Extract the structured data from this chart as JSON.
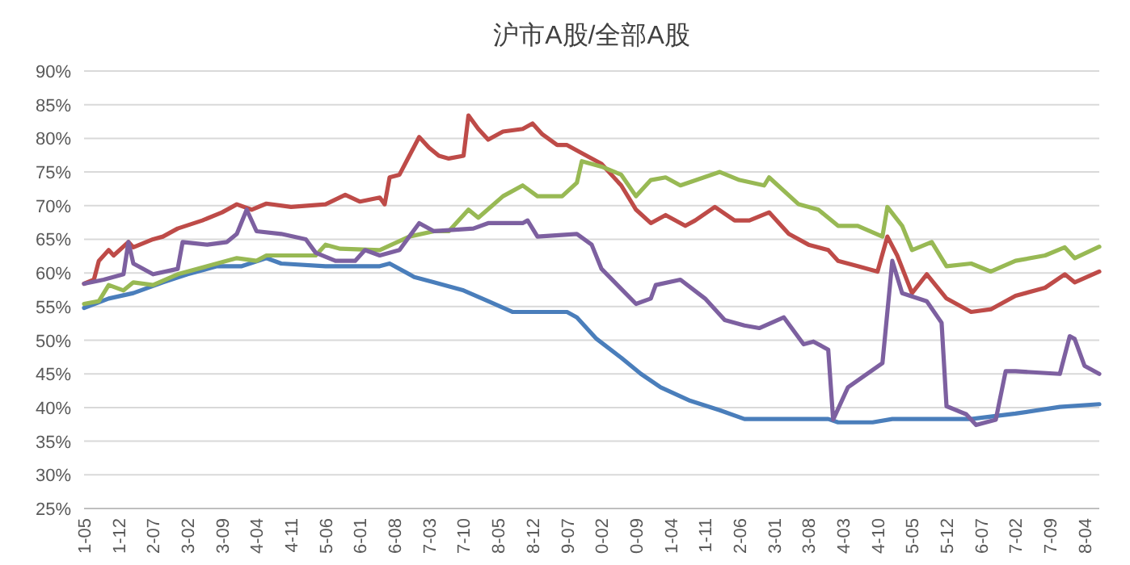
{
  "chart_data": {
    "type": "line",
    "title": "沪市A股/全部A股",
    "xlim": [
      "2001-05",
      "2018-07"
    ],
    "xticks": [
      {
        "value": "2001-05",
        "label": "1-05"
      },
      {
        "value": "2001-12",
        "label": "1-12"
      },
      {
        "value": "2002-07",
        "label": "2-07"
      },
      {
        "value": "2003-02",
        "label": "3-02"
      },
      {
        "value": "2003-09",
        "label": "3-09"
      },
      {
        "value": "2004-04",
        "label": "4-04"
      },
      {
        "value": "2004-11",
        "label": "4-11"
      },
      {
        "value": "2005-06",
        "label": "5-06"
      },
      {
        "value": "2006-01",
        "label": "6-01"
      },
      {
        "value": "2006-08",
        "label": "6-08"
      },
      {
        "value": "2007-03",
        "label": "7-03"
      },
      {
        "value": "2007-10",
        "label": "7-10"
      },
      {
        "value": "2008-05",
        "label": "8-05"
      },
      {
        "value": "2008-12",
        "label": "8-12"
      },
      {
        "value": "2009-07",
        "label": "9-07"
      },
      {
        "value": "2010-02",
        "label": "0-02"
      },
      {
        "value": "2010-09",
        "label": "0-09"
      },
      {
        "value": "2011-04",
        "label": "1-04"
      },
      {
        "value": "2011-11",
        "label": "1-11"
      },
      {
        "value": "2012-06",
        "label": "2-06"
      },
      {
        "value": "2013-01",
        "label": "3-01"
      },
      {
        "value": "2013-08",
        "label": "3-08"
      },
      {
        "value": "2014-03",
        "label": "4-03"
      },
      {
        "value": "2014-10",
        "label": "4-10"
      },
      {
        "value": "2015-05",
        "label": "5-05"
      },
      {
        "value": "2015-12",
        "label": "5-12"
      },
      {
        "value": "2016-07",
        "label": "6-07"
      },
      {
        "value": "2017-02",
        "label": "7-02"
      },
      {
        "value": "2017-09",
        "label": "7-09"
      },
      {
        "value": "2018-04",
        "label": "8-04"
      }
    ],
    "ylim": [
      25,
      90
    ],
    "yticks": [
      {
        "value": 25,
        "label": "25%"
      },
      {
        "value": 30,
        "label": "30%"
      },
      {
        "value": 35,
        "label": "35%"
      },
      {
        "value": 40,
        "label": "40%"
      },
      {
        "value": 45,
        "label": "45%"
      },
      {
        "value": 50,
        "label": "50%"
      },
      {
        "value": 55,
        "label": "55%"
      },
      {
        "value": 60,
        "label": "60%"
      },
      {
        "value": 65,
        "label": "65%"
      },
      {
        "value": 70,
        "label": "70%"
      },
      {
        "value": 75,
        "label": "75%"
      },
      {
        "value": 80,
        "label": "80%"
      },
      {
        "value": 85,
        "label": "85%"
      },
      {
        "value": 90,
        "label": "90%"
      }
    ],
    "grid": "y",
    "marker": "none",
    "line_style": "solid",
    "series": [
      {
        "color": "#4a7ebb",
        "x": [
          "2001-05",
          "2001-10",
          "2002-03",
          "2002-09",
          "2003-02",
          "2003-08",
          "2004-01",
          "2004-06",
          "2004-09",
          "2005-06",
          "2006-05",
          "2006-07",
          "2006-12",
          "2007-04",
          "2007-10",
          "2008-03",
          "2008-08",
          "2009-07",
          "2009-09",
          "2010-01",
          "2010-06",
          "2010-10",
          "2011-02",
          "2011-08",
          "2012-02",
          "2012-07",
          "2013-12",
          "2014-02",
          "2014-09",
          "2015-01",
          "2016-05",
          "2017-02",
          "2017-11",
          "2018-07"
        ],
        "values": [
          54.8,
          56.2,
          57,
          58.6,
          59.8,
          61,
          61,
          62.2,
          61.4,
          61,
          61,
          61.4,
          59.4,
          58.6,
          57.4,
          55.8,
          54.2,
          54.2,
          53.4,
          50.2,
          47.4,
          45,
          43,
          41,
          39.6,
          38.3,
          38.3,
          37.8,
          37.8,
          38.3,
          38.3,
          39.1,
          40.1,
          40.5
        ]
      },
      {
        "color": "#be4b48",
        "x": [
          "2001-05",
          "2001-07",
          "2001-08",
          "2001-10",
          "2001-11",
          "2002-02",
          "2002-03",
          "2002-07",
          "2002-09",
          "2002-12",
          "2003-05",
          "2003-09",
          "2003-12",
          "2004-03",
          "2004-06",
          "2004-11",
          "2005-06",
          "2005-10",
          "2006-01",
          "2006-05",
          "2006-06",
          "2006-07",
          "2006-09",
          "2006-11",
          "2007-01",
          "2007-03",
          "2007-05",
          "2007-07",
          "2007-10",
          "2007-11",
          "2008-01",
          "2008-03",
          "2008-06",
          "2008-10",
          "2008-12",
          "2009-02",
          "2009-05",
          "2009-07",
          "2009-10",
          "2010-02",
          "2010-06",
          "2010-09",
          "2010-12",
          "2011-03",
          "2011-07",
          "2011-09",
          "2012-01",
          "2012-05",
          "2012-08",
          "2012-12",
          "2013-04",
          "2013-08",
          "2013-12",
          "2014-02",
          "2014-06",
          "2014-10",
          "2014-12",
          "2015-02",
          "2015-05",
          "2015-08",
          "2015-12",
          "2016-05",
          "2016-09",
          "2017-02",
          "2017-08",
          "2017-12",
          "2018-02",
          "2018-07"
        ],
        "values": [
          58.4,
          59,
          61.8,
          63.4,
          62.6,
          64.6,
          63.8,
          65,
          65.4,
          66.6,
          67.8,
          69,
          70.2,
          69.4,
          70.3,
          69.8,
          70.2,
          71.6,
          70.6,
          71.2,
          70.2,
          74.2,
          74.6,
          77.4,
          80.2,
          78.6,
          77.4,
          77,
          77.4,
          83.4,
          81.4,
          79.8,
          81,
          81.4,
          82.2,
          80.6,
          79,
          79,
          77.8,
          76.2,
          73,
          69.4,
          67.4,
          68.6,
          67,
          67.8,
          69.8,
          67.8,
          67.8,
          69,
          65.8,
          64.2,
          63.4,
          61.8,
          61,
          60.2,
          65.4,
          62.6,
          57,
          59.8,
          56.2,
          54.2,
          54.6,
          56.6,
          57.8,
          59.8,
          58.6,
          60.2
        ]
      },
      {
        "color": "#98b954",
        "x": [
          "2001-05",
          "2001-08",
          "2001-10",
          "2002-01",
          "2002-03",
          "2002-07",
          "2002-12",
          "2003-06",
          "2003-12",
          "2004-04",
          "2004-06",
          "2005-04",
          "2005-06",
          "2005-09",
          "2006-05",
          "2006-11",
          "2007-04",
          "2007-07",
          "2007-11",
          "2008-01",
          "2008-06",
          "2008-10",
          "2009-01",
          "2009-06",
          "2009-09",
          "2009-10",
          "2010-02",
          "2010-06",
          "2010-09",
          "2010-12",
          "2011-03",
          "2011-06",
          "2012-02",
          "2012-06",
          "2012-11",
          "2012-12",
          "2013-06",
          "2013-10",
          "2014-02",
          "2014-06",
          "2014-11",
          "2014-12",
          "2015-03",
          "2015-05",
          "2015-09",
          "2015-12",
          "2016-05",
          "2016-09",
          "2017-02",
          "2017-08",
          "2017-12",
          "2018-02",
          "2018-07"
        ],
        "values": [
          55.4,
          55.8,
          58.2,
          57.4,
          58.6,
          58.2,
          59.8,
          61,
          62.2,
          61.8,
          62.6,
          62.6,
          64.2,
          63.6,
          63.4,
          65.4,
          66.2,
          66.2,
          69.4,
          68.2,
          71.4,
          73,
          71.4,
          71.4,
          73.4,
          76.6,
          75.8,
          74.6,
          71.4,
          73.8,
          74.2,
          73,
          75,
          73.8,
          73,
          74.2,
          70.2,
          69.4,
          67,
          67,
          65.4,
          69.8,
          67,
          63.4,
          64.6,
          61,
          61.4,
          60.2,
          61.8,
          62.6,
          63.8,
          62.2,
          63.9
        ]
      },
      {
        "color": "#7d60a0",
        "x": [
          "2001-05",
          "2001-09",
          "2002-01",
          "2002-02",
          "2002-03",
          "2002-07",
          "2002-12",
          "2003-01",
          "2003-06",
          "2003-10",
          "2003-12",
          "2004-02",
          "2004-04",
          "2004-09",
          "2005-02",
          "2005-04",
          "2005-08",
          "2005-12",
          "2006-02",
          "2006-05",
          "2006-09",
          "2007-01",
          "2007-04",
          "2007-12",
          "2008-03",
          "2008-10",
          "2008-11",
          "2009-01",
          "2009-09",
          "2009-12",
          "2010-02",
          "2010-09",
          "2010-12",
          "2011-01",
          "2011-06",
          "2011-11",
          "2012-03",
          "2012-07",
          "2012-10",
          "2013-03",
          "2013-07",
          "2013-09",
          "2013-12",
          "2014-01",
          "2014-04",
          "2014-11",
          "2015-01",
          "2015-03",
          "2015-08",
          "2015-11",
          "2015-12",
          "2016-04",
          "2016-06",
          "2016-10",
          "2016-12",
          "2017-02",
          "2017-11",
          "2018-01",
          "2018-02",
          "2018-04",
          "2018-07"
        ],
        "values": [
          58.4,
          59,
          59.8,
          64.6,
          61.4,
          59.8,
          60.6,
          64.6,
          64.2,
          64.6,
          65.8,
          69.4,
          66.2,
          65.8,
          65,
          63,
          61.8,
          61.8,
          63.4,
          62.6,
          63.4,
          67.4,
          66.2,
          66.6,
          67.4,
          67.4,
          67.8,
          65.4,
          65.8,
          64.2,
          60.6,
          55.4,
          56.2,
          58.2,
          59,
          56.2,
          53,
          52.2,
          51.8,
          53.4,
          49.4,
          49.8,
          48.6,
          38.2,
          43,
          46.6,
          61.8,
          57,
          55.8,
          52.6,
          40.2,
          39,
          37.4,
          38.2,
          45.4,
          45.4,
          45,
          50.6,
          50.2,
          46.2,
          45
        ]
      }
    ]
  }
}
